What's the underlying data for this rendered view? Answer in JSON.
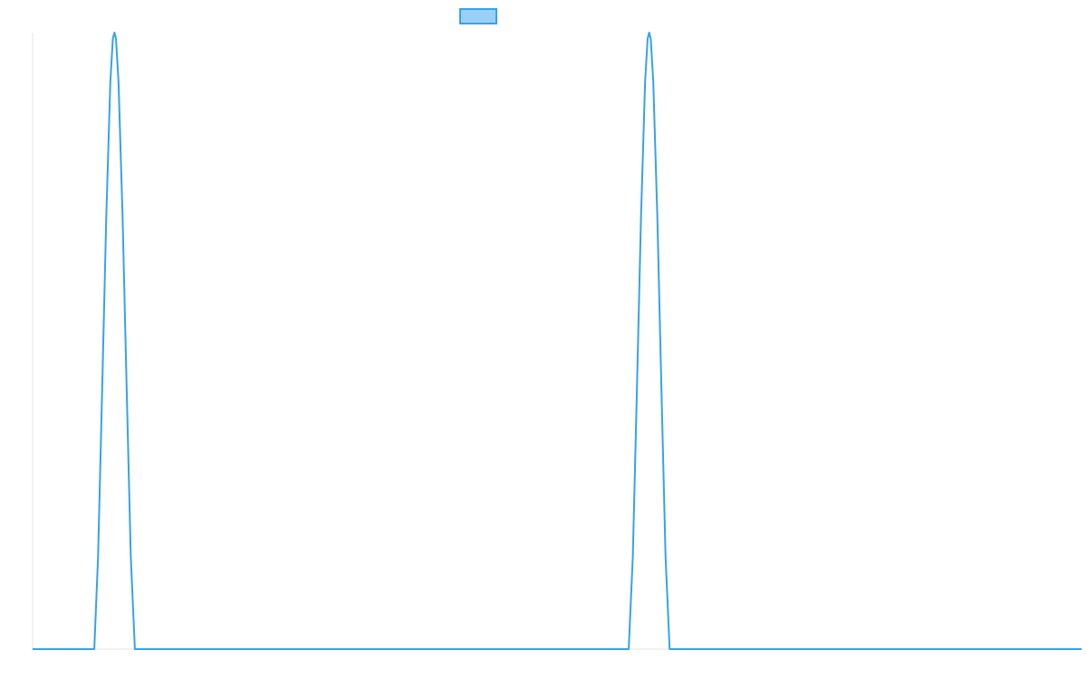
{
  "chart_data": {
    "type": "line",
    "title": "",
    "xlabel": "",
    "ylabel": "",
    "legend": {
      "placement": "top-center",
      "entries": [
        {
          "label": ""
        }
      ]
    },
    "grid": false,
    "xlim": [
      0,
      1
    ],
    "ylim": [
      0,
      1
    ],
    "series": [
      {
        "color": "#36a2eb",
        "fill": "#9ad0f5",
        "x": [
          0,
          0.0588,
          0.0624,
          0.0663,
          0.0702,
          0.0741,
          0.0765,
          0.078,
          0.0795,
          0.0819,
          0.0858,
          0.0897,
          0.0936,
          0.0975,
          0.1,
          0.3,
          0.5,
          0.5683,
          0.5722,
          0.5761,
          0.58,
          0.5839,
          0.5863,
          0.5878,
          0.5893,
          0.5917,
          0.5956,
          0.5995,
          0.6034,
          0.6073,
          0.7,
          0.85,
          1.0
        ],
        "y": [
          0,
          0,
          0.15,
          0.42,
          0.7,
          0.92,
          0.99,
          1.0,
          0.99,
          0.92,
          0.7,
          0.42,
          0.15,
          0,
          0,
          0,
          0,
          0,
          0.15,
          0.42,
          0.7,
          0.92,
          0.99,
          1.0,
          0.99,
          0.92,
          0.7,
          0.42,
          0.15,
          0,
          0,
          0,
          0
        ]
      }
    ]
  }
}
